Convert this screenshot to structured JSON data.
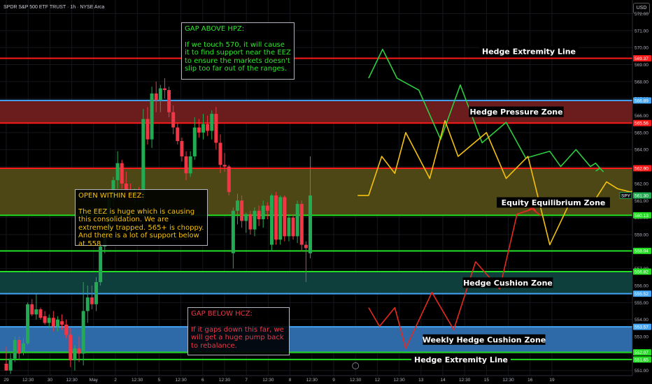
{
  "header": {
    "title": "SPDR S&P 500 ETF TRUST · 1h · NYSE Arca",
    "currency": "USD"
  },
  "ticker_badge": "SPY",
  "chart_data": {
    "type": "candlestick",
    "x_ticks": [
      "29",
      "12:30",
      "30",
      "12:30",
      "May",
      "2",
      "12:30",
      "5",
      "12:30",
      "6",
      "12:30",
      "7",
      "12:30",
      "8",
      "12:30",
      "9",
      "12:30",
      "12",
      "12:30",
      "13",
      "14",
      "12:30",
      "15",
      "12:30",
      "16",
      "19"
    ],
    "y_ticks": [
      551.0,
      552.0,
      553.0,
      554.0,
      555.0,
      556.0,
      557.0,
      558.0,
      559.0,
      560.0,
      561.0,
      562.0,
      563.0,
      564.0,
      565.0,
      566.0,
      567.0,
      568.0,
      569.0,
      570.0,
      571.0,
      572.0
    ],
    "ylim": [
      550.7,
      572.8
    ],
    "colors": {
      "up": "#22ab52",
      "down": "#f23645",
      "gap_above_path": "#2ecc40",
      "eez_path": "#f4c20d",
      "gap_below_path": "#e52a1f"
    },
    "levels": [
      {
        "name": "Hedge Extremity Line",
        "value": 569.37,
        "tag": "569.37",
        "color": "#ff1a1a"
      },
      {
        "name": "Hedge Pressure Zone top",
        "value": 566.89,
        "tag": "566.89",
        "color": "#42a5f5"
      },
      {
        "name": "Hedge Pressure Zone bottom",
        "value": 565.56,
        "tag": "565.56",
        "color": "#ff1a1a"
      },
      {
        "name": "Equity Equilibrium Zone top",
        "value": 562.9,
        "tag": "562.90",
        "color": "#ff1a1a"
      },
      {
        "name": "Equity Equilibrium Zone bottom",
        "value": 560.13,
        "tag": "560.13",
        "color": "#22dd22"
      },
      {
        "name": "Support",
        "value": 558.04,
        "tag": "558.04",
        "color": "#22dd22"
      },
      {
        "name": "Hedge Cushion Zone top",
        "value": 556.82,
        "tag": "556.82",
        "color": "#22dd22"
      },
      {
        "name": "Hedge Cushion Zone bottom",
        "value": 555.52,
        "tag": "555.52",
        "color": "#42a5f5"
      },
      {
        "name": "Weekly Hedge Cushion Zone top",
        "value": 553.57,
        "tag": "553.57",
        "color": "#42a5f5"
      },
      {
        "name": "Weekly Hedge Cushion Zone bottom",
        "value": 552.07,
        "tag": "552.07",
        "color": "#22dd22"
      },
      {
        "name": "Hedge Extremity Line low",
        "value": 551.65,
        "tag": "551.65",
        "color": "#22dd22"
      }
    ],
    "last_price": {
      "value": 561.3,
      "tag": "561.30"
    },
    "zones": [
      {
        "label": "Hedge Pressure Zone",
        "from": 565.56,
        "to": 566.89,
        "fill": "#6b1d1d"
      },
      {
        "label": "Equity Equilibrium Zone",
        "from": 560.13,
        "to": 562.9,
        "fill": "#4d4716"
      },
      {
        "label": "Hedge Cushion Zone",
        "from": 555.52,
        "to": 556.82,
        "fill": "#0f3f3c"
      },
      {
        "label": "Weekly Hedge Cushion Zone",
        "from": 552.07,
        "to": 553.57,
        "fill": "#2f6aa8"
      }
    ],
    "line_labels": [
      {
        "label": "Hedge Extremity Line",
        "value": 569.37
      },
      {
        "label": "Hedge Extremity Line",
        "value": 551.65
      }
    ],
    "candles": [
      {
        "o": 551.4,
        "h": 552.4,
        "l": 551.0,
        "c": 551.0
      },
      {
        "o": 551.0,
        "h": 552.0,
        "l": 550.8,
        "c": 551.7
      },
      {
        "o": 551.7,
        "h": 553.0,
        "l": 551.5,
        "c": 552.8
      },
      {
        "o": 552.8,
        "h": 553.0,
        "l": 551.6,
        "c": 552.0
      },
      {
        "o": 552.1,
        "h": 552.9,
        "l": 551.9,
        "c": 552.6
      },
      {
        "o": 552.6,
        "h": 555.0,
        "l": 552.5,
        "c": 554.9
      },
      {
        "o": 554.9,
        "h": 555.2,
        "l": 554.2,
        "c": 554.3
      },
      {
        "o": 554.3,
        "h": 555.5,
        "l": 554.0,
        "c": 554.6
      },
      {
        "o": 554.6,
        "h": 554.7,
        "l": 554.0,
        "c": 554.1
      },
      {
        "o": 554.2,
        "h": 554.5,
        "l": 553.7,
        "c": 553.8
      },
      {
        "o": 553.8,
        "h": 554.3,
        "l": 553.5,
        "c": 554.1
      },
      {
        "o": 554.1,
        "h": 554.5,
        "l": 553.3,
        "c": 553.6
      },
      {
        "o": 553.6,
        "h": 554.2,
        "l": 553.3,
        "c": 554.0
      },
      {
        "o": 553.9,
        "h": 554.3,
        "l": 553.4,
        "c": 553.7
      },
      {
        "o": 553.7,
        "h": 554.0,
        "l": 552.9,
        "c": 553.1
      },
      {
        "o": 553.1,
        "h": 553.5,
        "l": 551.2,
        "c": 551.6
      },
      {
        "o": 551.6,
        "h": 552.5,
        "l": 551.0,
        "c": 552.3
      },
      {
        "o": 552.3,
        "h": 553.0,
        "l": 551.5,
        "c": 552.0
      },
      {
        "o": 552.0,
        "h": 556.2,
        "l": 551.3,
        "c": 554.5
      },
      {
        "o": 554.5,
        "h": 556.0,
        "l": 553.8,
        "c": 555.3
      },
      {
        "o": 555.3,
        "h": 556.0,
        "l": 554.6,
        "c": 554.9
      },
      {
        "o": 554.9,
        "h": 556.5,
        "l": 554.5,
        "c": 556.2
      },
      {
        "o": 556.2,
        "h": 558.6,
        "l": 556.0,
        "c": 558.3
      },
      {
        "o": 558.3,
        "h": 559.4,
        "l": 557.9,
        "c": 559.2
      },
      {
        "o": 559.2,
        "h": 561.4,
        "l": 558.8,
        "c": 561.1
      },
      {
        "o": 561.1,
        "h": 562.4,
        "l": 560.6,
        "c": 562.2
      },
      {
        "o": 562.2,
        "h": 563.9,
        "l": 561.7,
        "c": 563.2
      },
      {
        "o": 563.2,
        "h": 563.4,
        "l": 561.7,
        "c": 562.0
      },
      {
        "o": 562.0,
        "h": 562.7,
        "l": 561.1,
        "c": 561.5
      },
      {
        "o": 561.5,
        "h": 562.0,
        "l": 560.9,
        "c": 561.2
      },
      {
        "o": 561.2,
        "h": 561.7,
        "l": 560.8,
        "c": 561.5
      },
      {
        "o": 561.5,
        "h": 561.8,
        "l": 561.0,
        "c": 561.2
      },
      {
        "o": 561.2,
        "h": 566.4,
        "l": 560.9,
        "c": 565.8
      },
      {
        "o": 565.8,
        "h": 566.5,
        "l": 564.3,
        "c": 564.6
      },
      {
        "o": 564.6,
        "h": 567.7,
        "l": 564.1,
        "c": 567.3
      },
      {
        "o": 567.3,
        "h": 568.0,
        "l": 566.2,
        "c": 566.9
      },
      {
        "o": 566.9,
        "h": 567.8,
        "l": 566.2,
        "c": 567.6
      },
      {
        "o": 567.6,
        "h": 568.2,
        "l": 567.0,
        "c": 567.5
      },
      {
        "o": 567.5,
        "h": 567.7,
        "l": 565.9,
        "c": 566.2
      },
      {
        "o": 566.2,
        "h": 566.6,
        "l": 564.9,
        "c": 565.3
      },
      {
        "o": 565.3,
        "h": 565.6,
        "l": 564.3,
        "c": 564.5
      },
      {
        "o": 564.5,
        "h": 564.7,
        "l": 563.3,
        "c": 563.6
      },
      {
        "o": 563.6,
        "h": 563.9,
        "l": 562.2,
        "c": 562.6
      },
      {
        "o": 562.6,
        "h": 563.9,
        "l": 562.4,
        "c": 563.6
      },
      {
        "o": 563.6,
        "h": 565.9,
        "l": 563.4,
        "c": 565.3
      },
      {
        "o": 565.3,
        "h": 565.8,
        "l": 564.7,
        "c": 565.0
      },
      {
        "o": 565.0,
        "h": 566.1,
        "l": 564.6,
        "c": 565.5
      },
      {
        "o": 565.5,
        "h": 566.0,
        "l": 564.8,
        "c": 565.1
      },
      {
        "o": 565.1,
        "h": 566.3,
        "l": 564.6,
        "c": 566.1
      },
      {
        "o": 566.1,
        "h": 566.5,
        "l": 564.0,
        "c": 564.4
      },
      {
        "o": 564.4,
        "h": 564.9,
        "l": 562.6,
        "c": 563.1
      },
      {
        "o": 563.1,
        "h": 563.8,
        "l": 562.7,
        "c": 563.0
      },
      {
        "o": 563.0,
        "h": 563.1,
        "l": 561.3,
        "c": 561.5
      },
      {
        "o": 557.9,
        "h": 560.6,
        "l": 557.0,
        "c": 560.4
      },
      {
        "o": 560.4,
        "h": 561.4,
        "l": 559.6,
        "c": 561.0
      },
      {
        "o": 561.0,
        "h": 561.3,
        "l": 559.4,
        "c": 559.8
      },
      {
        "o": 559.8,
        "h": 560.3,
        "l": 559.1,
        "c": 560.2
      },
      {
        "o": 560.2,
        "h": 560.4,
        "l": 559.0,
        "c": 559.3
      },
      {
        "o": 559.3,
        "h": 560.6,
        "l": 558.9,
        "c": 560.4
      },
      {
        "o": 560.4,
        "h": 560.7,
        "l": 559.5,
        "c": 559.9
      },
      {
        "o": 559.9,
        "h": 561.0,
        "l": 559.4,
        "c": 560.7
      },
      {
        "o": 560.7,
        "h": 560.9,
        "l": 559.9,
        "c": 560.4
      },
      {
        "o": 558.4,
        "h": 561.4,
        "l": 558.0,
        "c": 561.3
      },
      {
        "o": 561.3,
        "h": 561.5,
        "l": 558.4,
        "c": 558.7
      },
      {
        "o": 558.7,
        "h": 561.3,
        "l": 558.4,
        "c": 561.2
      },
      {
        "o": 561.2,
        "h": 561.3,
        "l": 558.6,
        "c": 558.9
      },
      {
        "o": 558.9,
        "h": 560.2,
        "l": 558.6,
        "c": 560.0
      },
      {
        "o": 560.0,
        "h": 560.2,
        "l": 558.7,
        "c": 558.9
      },
      {
        "o": 558.9,
        "h": 561.0,
        "l": 558.5,
        "c": 560.8
      },
      {
        "o": 560.8,
        "h": 561.0,
        "l": 558.0,
        "c": 558.4
      },
      {
        "o": 558.4,
        "h": 558.6,
        "l": 556.2,
        "c": 558.2
      },
      {
        "o": 557.9,
        "h": 563.6,
        "l": 557.6,
        "c": 561.3
      }
    ],
    "scenario_paths": [
      {
        "name": "gap-above",
        "color": "#2ecc40",
        "points": [
          [
            8.3,
            568.2
          ],
          [
            8.62,
            569.9
          ],
          [
            8.95,
            568.2
          ],
          [
            9.45,
            567.5
          ],
          [
            9.95,
            564.6
          ],
          [
            10.4,
            567.8
          ],
          [
            10.9,
            564.4
          ],
          [
            11.45,
            565.6
          ],
          [
            11.9,
            563.5
          ],
          [
            12.45,
            563.9
          ],
          [
            12.7,
            563.0
          ],
          [
            13.05,
            564.0
          ],
          [
            13.38,
            563.0
          ],
          [
            13.5,
            563.2
          ],
          [
            13.6,
            562.9
          ]
        ]
      },
      {
        "name": "eez",
        "color": "#f4c20d",
        "points": [
          [
            8.05,
            561.3
          ],
          [
            8.3,
            561.3
          ],
          [
            8.6,
            563.6
          ],
          [
            8.9,
            562.6
          ],
          [
            9.15,
            565.0
          ],
          [
            9.7,
            562.3
          ],
          [
            10.05,
            565.7
          ],
          [
            10.35,
            563.6
          ],
          [
            11.0,
            565.0
          ],
          [
            11.45,
            562.3
          ],
          [
            11.95,
            563.6
          ],
          [
            12.45,
            558.4
          ],
          [
            12.95,
            561.1
          ],
          [
            13.4,
            560.7
          ],
          [
            13.75,
            562.1
          ],
          [
            14.0,
            561.7
          ],
          [
            14.3,
            561.5
          ],
          [
            14.7,
            562.1
          ],
          [
            15.05,
            562.6
          ],
          [
            15.45,
            563.0
          ],
          [
            15.8,
            562.6
          ],
          [
            16.2,
            563.0
          ],
          [
            16.5,
            563.2
          ],
          [
            16.65,
            562.7
          ]
        ]
      },
      {
        "name": "gap-below",
        "color": "#e52a1f",
        "points": [
          [
            8.3,
            554.7
          ],
          [
            8.55,
            553.6
          ],
          [
            8.9,
            554.7
          ],
          [
            9.15,
            552.3
          ],
          [
            9.75,
            555.6
          ],
          [
            10.25,
            553.4
          ],
          [
            10.75,
            557.4
          ],
          [
            11.3,
            555.8
          ],
          [
            11.7,
            560.2
          ],
          [
            12.05,
            560.5
          ],
          [
            12.25,
            560.1
          ]
        ]
      }
    ],
    "arrow_tips": [
      {
        "path": "gap-above",
        "at": [
          13.6,
          562.9
        ]
      },
      {
        "path": "gap-below",
        "at": [
          12.05,
          560.6
        ]
      }
    ]
  },
  "notes": {
    "gap_above": {
      "title": "GAP ABOVE HPZ:",
      "body": "If we touch 570, it will cause it to find support near the EEZ to ensure the markets doesn't slip too far out of the ranges."
    },
    "open_within": {
      "title": "OPEN WITHIN EEZ:",
      "body": "The EEZ is huge which is causing this consolidation. We are extremely trapped. 565+ is choppy. And there is a lot of support below at 558"
    },
    "gap_below": {
      "title": "GAP BELOW HCZ:",
      "body": "If it gaps down this far, we will get a huge pump back to rebalance."
    }
  }
}
